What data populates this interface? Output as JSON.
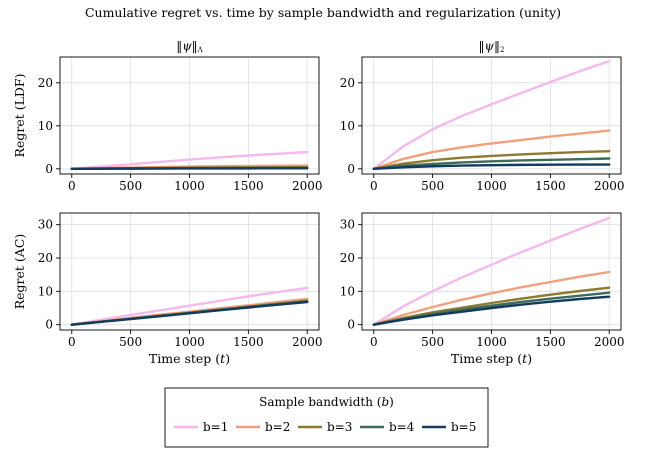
{
  "figure": {
    "title": "Cumulative regret vs. time by sample bandwidth and regularization (unity)"
  },
  "legend": {
    "title": "Sample bandwidth (b)",
    "position": "bottom-center",
    "entries": [
      "b=1",
      "b=2",
      "b=3",
      "b=4",
      "b=5"
    ]
  },
  "colors": {
    "b=1": "#f5b8ef",
    "b=2": "#f0a07c",
    "b=3": "#8d7a2e",
    "b=4": "#3e6b5c",
    "b=5": "#133b5c",
    "grid": "#dddddd",
    "axis": "#000000"
  },
  "chart_data": [
    {
      "type": "line",
      "title": "‖ψ‖Λ",
      "xlabel": "",
      "ylabel": "Regret (LDF)",
      "xlim": [
        -100,
        2100
      ],
      "ylim": [
        -1.2,
        26
      ],
      "xticks": [
        0,
        500,
        1000,
        1500,
        2000
      ],
      "yticks": [
        0,
        10,
        20
      ],
      "grid": true,
      "x": [
        0,
        250,
        500,
        750,
        1000,
        1250,
        1500,
        1750,
        2000
      ],
      "series": [
        {
          "name": "b=1",
          "values": [
            0,
            0.55,
            1.05,
            1.6,
            2.15,
            2.65,
            3.1,
            3.5,
            3.9
          ]
        },
        {
          "name": "b=2",
          "values": [
            0,
            0.15,
            0.3,
            0.42,
            0.52,
            0.6,
            0.67,
            0.72,
            0.76
          ]
        },
        {
          "name": "b=3",
          "values": [
            0,
            0.08,
            0.15,
            0.2,
            0.25,
            0.29,
            0.32,
            0.35,
            0.37
          ]
        },
        {
          "name": "b=4",
          "values": [
            0,
            0.05,
            0.09,
            0.12,
            0.15,
            0.17,
            0.19,
            0.2,
            0.21
          ]
        },
        {
          "name": "b=5",
          "values": [
            0,
            0.03,
            0.05,
            0.07,
            0.09,
            0.1,
            0.11,
            0.12,
            0.13
          ]
        }
      ]
    },
    {
      "type": "line",
      "title": "‖ψ‖2",
      "xlabel": "",
      "ylabel": "",
      "xlim": [
        -100,
        2100
      ],
      "ylim": [
        -1.2,
        26
      ],
      "xticks": [
        0,
        500,
        1000,
        1500,
        2000
      ],
      "yticks": [
        0,
        10,
        20
      ],
      "grid": true,
      "x": [
        0,
        250,
        500,
        750,
        1000,
        1250,
        1500,
        1750,
        2000
      ],
      "series": [
        {
          "name": "b=1",
          "values": [
            0,
            5.2,
            9.2,
            12.3,
            15.0,
            17.6,
            20.2,
            22.7,
            25.0
          ]
        },
        {
          "name": "b=2",
          "values": [
            0,
            2.3,
            3.9,
            5.0,
            5.9,
            6.7,
            7.5,
            8.2,
            8.9
          ]
        },
        {
          "name": "b=3",
          "values": [
            0,
            1.2,
            2.0,
            2.6,
            3.0,
            3.35,
            3.65,
            3.9,
            4.1
          ]
        },
        {
          "name": "b=4",
          "values": [
            0,
            0.7,
            1.15,
            1.5,
            1.75,
            1.95,
            2.1,
            2.25,
            2.4
          ]
        },
        {
          "name": "b=5",
          "values": [
            0,
            0.35,
            0.6,
            0.75,
            0.85,
            0.92,
            0.97,
            1.0,
            1.0
          ]
        }
      ]
    },
    {
      "type": "line",
      "title": "",
      "xlabel": "Time step (t)",
      "ylabel": "Regret (AC)",
      "xlim": [
        -100,
        2100
      ],
      "ylim": [
        -1.6,
        33.5
      ],
      "xticks": [
        0,
        500,
        1000,
        1500,
        2000
      ],
      "yticks": [
        0,
        10,
        20,
        30
      ],
      "grid": true,
      "x": [
        0,
        250,
        500,
        750,
        1000,
        1250,
        1500,
        1750,
        2000
      ],
      "series": [
        {
          "name": "b=1",
          "values": [
            0,
            1.5,
            2.9,
            4.3,
            5.7,
            7.1,
            8.5,
            9.8,
            11.0
          ]
        },
        {
          "name": "b=2",
          "values": [
            0,
            1.0,
            2.0,
            3.0,
            3.9,
            4.9,
            5.8,
            6.8,
            7.7
          ]
        },
        {
          "name": "b=3",
          "values": [
            0,
            0.9,
            1.8,
            2.7,
            3.6,
            4.5,
            5.4,
            6.3,
            7.2
          ]
        },
        {
          "name": "b=4",
          "values": [
            0,
            0.88,
            1.75,
            2.6,
            3.5,
            4.4,
            5.3,
            6.15,
            7.0
          ]
        },
        {
          "name": "b=5",
          "values": [
            0,
            0.85,
            1.7,
            2.55,
            3.4,
            4.3,
            5.15,
            6.0,
            6.8
          ]
        }
      ]
    },
    {
      "type": "line",
      "title": "",
      "xlabel": "Time step (t)",
      "ylabel": "",
      "xlim": [
        -100,
        2100
      ],
      "ylim": [
        -1.6,
        33.5
      ],
      "xticks": [
        0,
        500,
        1000,
        1500,
        2000
      ],
      "yticks": [
        0,
        10,
        20,
        30
      ],
      "grid": true,
      "x": [
        0,
        250,
        500,
        750,
        1000,
        1250,
        1500,
        1750,
        2000
      ],
      "series": [
        {
          "name": "b=1",
          "values": [
            0,
            5.5,
            10.0,
            14.2,
            18.0,
            21.7,
            25.2,
            28.7,
            32.0
          ]
        },
        {
          "name": "b=2",
          "values": [
            0,
            2.9,
            5.3,
            7.5,
            9.4,
            11.2,
            12.8,
            14.4,
            15.8
          ]
        },
        {
          "name": "b=3",
          "values": [
            0,
            2.0,
            3.7,
            5.1,
            6.5,
            7.8,
            9.0,
            10.1,
            11.1
          ]
        },
        {
          "name": "b=4",
          "values": [
            0,
            1.7,
            3.2,
            4.5,
            5.7,
            6.8,
            7.8,
            8.7,
            9.6
          ]
        },
        {
          "name": "b=5",
          "values": [
            0,
            1.5,
            2.8,
            3.9,
            5.0,
            6.0,
            6.9,
            7.7,
            8.4
          ]
        }
      ]
    }
  ]
}
